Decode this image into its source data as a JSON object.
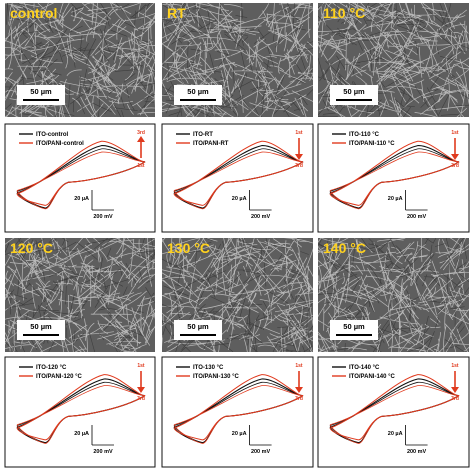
{
  "figure": {
    "panels": [
      {
        "sem_label": "control",
        "scale": "50 µm",
        "legend": [
          "ITO-control",
          "ITO/PANI-control"
        ],
        "cur_scale": "20 µA",
        "pot_scale": "200 mV",
        "order": {
          "top": "3rd",
          "bottom": "1st",
          "arrow": "up"
        }
      },
      {
        "sem_label": "RT",
        "scale": "50 µm",
        "legend": [
          "ITO-RT",
          "ITO/PANI-RT"
        ],
        "cur_scale": "20 µA",
        "pot_scale": "200 mV",
        "order": {
          "top": "1st",
          "bottom": "3rd",
          "arrow": "down"
        }
      },
      {
        "sem_label": "110 °C",
        "scale": "50 µm",
        "legend": [
          "ITO-110 °C",
          "ITO/PANI-110 °C"
        ],
        "cur_scale": "20 µA",
        "pot_scale": "200 mV",
        "order": {
          "top": "1st",
          "bottom": "3rd",
          "arrow": "down"
        }
      },
      {
        "sem_label": "120 °C",
        "scale": "50 µm",
        "legend": [
          "ITO-120 °C",
          "ITO/PANI-120 °C"
        ],
        "cur_scale": "20 µA",
        "pot_scale": "200 mV",
        "order": {
          "top": "1st",
          "bottom": "3rd",
          "arrow": "down"
        }
      },
      {
        "sem_label": "130 °C",
        "scale": "50 µm",
        "legend": [
          "ITO-130 °C",
          "ITO/PANI-130 °C"
        ],
        "cur_scale": "20 µA",
        "pot_scale": "200 mV",
        "order": {
          "top": "1st",
          "bottom": "3rd",
          "arrow": "down"
        }
      },
      {
        "sem_label": "140 °C",
        "scale": "50 µm",
        "legend": [
          "ITO-140 °C",
          "ITO/PANI-140 °C"
        ],
        "cur_scale": "20 µA",
        "pot_scale": "200 mV",
        "order": {
          "top": "1st",
          "bottom": "3rd",
          "arrow": "down"
        }
      }
    ]
  },
  "colors": {
    "ito": "#111111",
    "pani": "#e03a1e",
    "label": "#ffd21e",
    "arrow": "#e03a1e"
  }
}
